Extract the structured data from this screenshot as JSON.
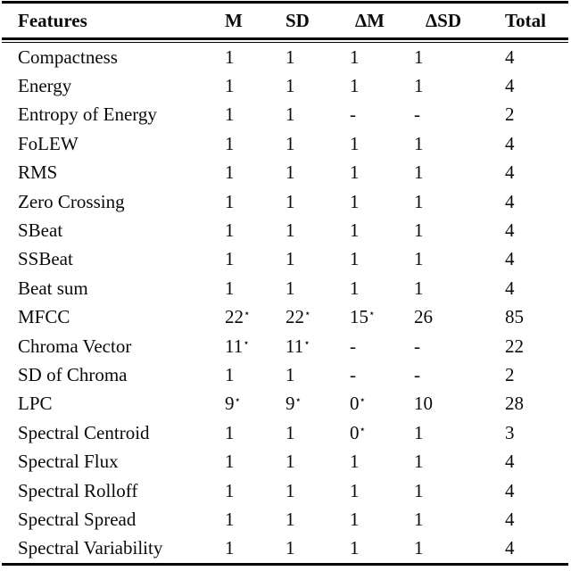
{
  "table": {
    "columns": [
      "Features",
      "M",
      "SD",
      "ΔM",
      "ΔSD",
      "Total"
    ],
    "star_marker": "⋆",
    "missing_marker": "-",
    "rows": [
      {
        "feature": "Compactness",
        "values": [
          "1",
          "1",
          "1",
          "1",
          "4"
        ]
      },
      {
        "feature": "Energy",
        "values": [
          "1",
          "1",
          "1",
          "1",
          "4"
        ]
      },
      {
        "feature": "Entropy of Energy",
        "values": [
          "1",
          "1",
          "-",
          "-",
          "2"
        ]
      },
      {
        "feature": "FoLEW",
        "values": [
          "1",
          "1",
          "1",
          "1",
          "4"
        ]
      },
      {
        "feature": "RMS",
        "values": [
          "1",
          "1",
          "1",
          "1",
          "4"
        ]
      },
      {
        "feature": "Zero Crossing",
        "values": [
          "1",
          "1",
          "1",
          "1",
          "4"
        ]
      },
      {
        "feature": "SBeat",
        "values": [
          "1",
          "1",
          "1",
          "1",
          "4"
        ]
      },
      {
        "feature": "SSBeat",
        "values": [
          "1",
          "1",
          "1",
          "1",
          "4"
        ]
      },
      {
        "feature": "Beat sum",
        "values": [
          "1",
          "1",
          "1",
          "1",
          "4"
        ]
      },
      {
        "feature": "MFCC",
        "values": [
          "22⋆",
          "22⋆",
          "15⋆",
          "26",
          "85"
        ]
      },
      {
        "feature": "Chroma Vector",
        "values": [
          "11⋆",
          "11⋆",
          "-",
          "-",
          "22"
        ]
      },
      {
        "feature": "SD of Chroma",
        "values": [
          "1",
          "1",
          "-",
          "-",
          "2"
        ]
      },
      {
        "feature": "LPC",
        "values": [
          "9⋆",
          "9⋆",
          "0⋆",
          "10",
          "28"
        ]
      },
      {
        "feature": "Spectral Centroid",
        "values": [
          "1",
          "1",
          "0⋆",
          "1",
          "3"
        ]
      },
      {
        "feature": "Spectral Flux",
        "values": [
          "1",
          "1",
          "1",
          "1",
          "4"
        ]
      },
      {
        "feature": "Spectral Rolloff",
        "values": [
          "1",
          "1",
          "1",
          "1",
          "4"
        ]
      },
      {
        "feature": "Spectral Spread",
        "values": [
          "1",
          "1",
          "1",
          "1",
          "4"
        ]
      },
      {
        "feature": "Spectral Variability",
        "values": [
          "1",
          "1",
          "1",
          "1",
          "4"
        ]
      }
    ],
    "colors": {
      "text": "#0a0a0a",
      "rule": "#000000",
      "background": "#ffffff"
    }
  }
}
